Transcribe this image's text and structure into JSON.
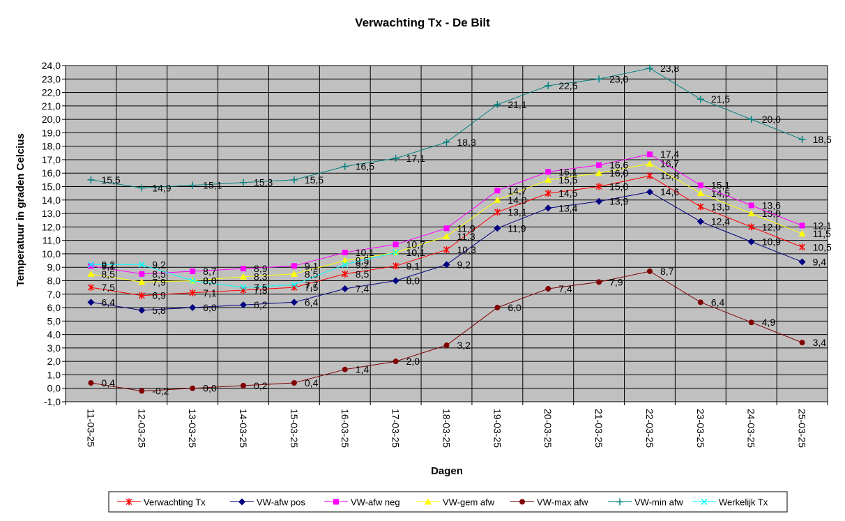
{
  "chart_data": {
    "type": "line",
    "title": "Verwachting Tx - De Bilt",
    "xlabel": "Dagen",
    "ylabel": "Temperatuur in graden Celcius",
    "ylim": [
      -1.0,
      24.0
    ],
    "ystep": 1.0,
    "grid": true,
    "legend_position": "bottom",
    "plot_background": "#c0c0c0",
    "categories": [
      "11-03-25",
      "12-03-25",
      "13-03-25",
      "14-03-25",
      "15-03-25",
      "16-03-25",
      "17-03-25",
      "18-03-25",
      "19-03-25",
      "20-03-25",
      "21-03-25",
      "22-03-25",
      "23-03-25",
      "24-03-25",
      "25-03-25"
    ],
    "series": [
      {
        "name": "Verwachting Tx",
        "color": "#ff0000",
        "marker": "asterisk",
        "values": [
          7.5,
          6.9,
          7.1,
          7.3,
          7.5,
          8.5,
          9.1,
          10.3,
          13.1,
          14.5,
          15.0,
          15.8,
          13.5,
          12.0,
          10.5
        ],
        "labels": [
          "7,5",
          "6,9",
          "7,1",
          "7,3",
          "7,5",
          "8,5",
          "9,1",
          "10,3",
          "13,1",
          "14,5",
          "15,0",
          "15,8",
          "13,5",
          "12,0",
          "10,5"
        ]
      },
      {
        "name": "VW-afw pos",
        "color": "#000080",
        "marker": "diamond",
        "values": [
          6.4,
          5.8,
          6.0,
          6.2,
          6.4,
          7.4,
          8.0,
          9.2,
          11.9,
          13.4,
          13.9,
          14.6,
          12.4,
          10.9,
          9.4
        ],
        "labels": [
          "6,4",
          "5,8",
          "6,0",
          "6,2",
          "6,4",
          "7,4",
          "8,0",
          "9,2",
          "11,9",
          "13,4",
          "13,9",
          "14,6",
          "12,4",
          "10,9",
          "9,4"
        ]
      },
      {
        "name": "VW-afw neg",
        "color": "#ff00ff",
        "marker": "square",
        "values": [
          9.1,
          8.5,
          8.7,
          8.9,
          9.1,
          10.1,
          10.7,
          11.9,
          14.7,
          16.1,
          16.6,
          17.4,
          15.1,
          13.6,
          12.1
        ],
        "labels": [
          "9,1",
          "8,5",
          "8,7",
          "8,9",
          "9,1",
          "10,1",
          "10,7",
          "11,9",
          "14,7",
          "16,1",
          "16,6",
          "17,4",
          "15,1",
          "13,6",
          "12,1"
        ]
      },
      {
        "name": "VW-gem afw",
        "color": "#ffff00",
        "marker": "triangle",
        "values": [
          8.5,
          7.9,
          8.0,
          8.3,
          8.5,
          9.5,
          10.1,
          11.3,
          14.0,
          15.5,
          16.0,
          16.7,
          14.5,
          13.0,
          11.5
        ],
        "labels": [
          "8,5",
          "7,9",
          "8,0",
          "8,3",
          "8,5",
          "9,5",
          "10,1",
          "11,3",
          "14,0",
          "15,5",
          "16,0",
          "16,7",
          "14,5",
          "13,0",
          "11,5"
        ]
      },
      {
        "name": "VW-max afw",
        "color": "#800000",
        "marker": "circle",
        "values": [
          0.4,
          -0.2,
          0.0,
          0.2,
          0.4,
          1.4,
          2.0,
          3.2,
          6.0,
          7.4,
          7.9,
          8.7,
          6.4,
          4.9,
          3.4
        ],
        "labels": [
          "0,4",
          "-0,2",
          "0,0",
          "0,2",
          "0,4",
          "1,4",
          "2,0",
          "3,2",
          "6,0",
          "7,4",
          "7,9",
          "8,7",
          "6,4",
          "4,9",
          "3,4"
        ]
      },
      {
        "name": "VW-min afw",
        "color": "#008080",
        "marker": "plus",
        "values": [
          15.5,
          14.9,
          15.1,
          15.3,
          15.5,
          16.5,
          17.1,
          18.3,
          21.1,
          22.5,
          23.0,
          23.8,
          21.5,
          20.0,
          18.5
        ],
        "labels": [
          "15,5",
          "14,9",
          "15,1",
          "15,3",
          "15,5",
          "16,5",
          "17,1",
          "18,3",
          "21,1",
          "22,5",
          "23,0",
          "23,8",
          "21,5",
          "20,0",
          "18,5"
        ]
      },
      {
        "name": "Werkelijk Tx",
        "color": "#00ffff",
        "marker": "x",
        "values": [
          9.2,
          9.2,
          8.0,
          7.5,
          7.7,
          9.2,
          10.1,
          null,
          null,
          null,
          null,
          null,
          null,
          null,
          null
        ],
        "labels": [
          "9,2",
          "9,2",
          "8,0",
          "7,5",
          "7,7",
          "9,2",
          "10,1",
          "",
          "",
          "",
          "",
          "",
          "",
          "",
          ""
        ]
      }
    ],
    "ytick_labels": [
      "-1,0",
      "0,0",
      "1,0",
      "2,0",
      "3,0",
      "4,0",
      "5,0",
      "6,0",
      "7,0",
      "8,0",
      "9,0",
      "10,0",
      "11,0",
      "12,0",
      "13,0",
      "14,0",
      "15,0",
      "16,0",
      "17,0",
      "18,0",
      "19,0",
      "20,0",
      "21,0",
      "22,0",
      "23,0",
      "24,0"
    ]
  }
}
